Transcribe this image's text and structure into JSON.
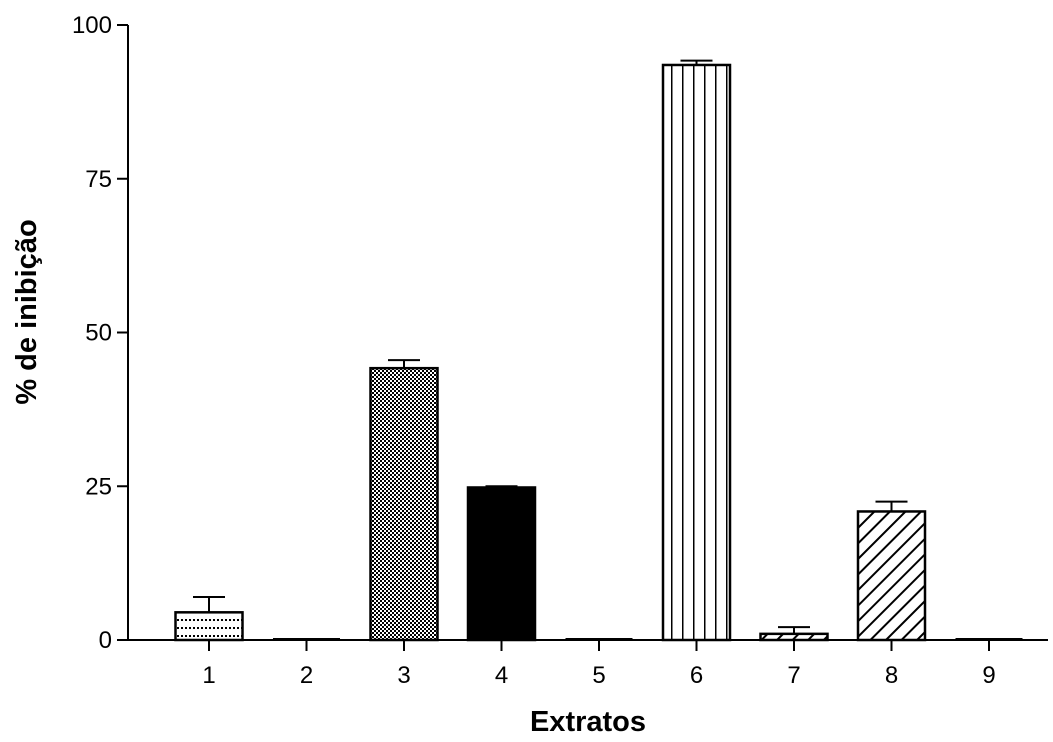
{
  "chart_data": {
    "type": "bar",
    "title": "",
    "xlabel": "Extratos",
    "ylabel": "% de inibição",
    "ylim": [
      0,
      100
    ],
    "yticks": [
      0,
      25,
      50,
      75,
      100
    ],
    "categories": [
      "1",
      "2",
      "3",
      "4",
      "5",
      "6",
      "7",
      "8",
      "9"
    ],
    "values": [
      4.5,
      0,
      44.2,
      24.8,
      0,
      93.5,
      1.0,
      20.9,
      0
    ],
    "errors": [
      2.5,
      0,
      1.3,
      0.2,
      0,
      0.7,
      1.1,
      1.6,
      0
    ],
    "patterns": [
      "dots",
      "none",
      "checker",
      "solid",
      "none",
      "vertical-lines",
      "diagonal-hatch",
      "diagonal-hatch",
      "none"
    ],
    "grid": false,
    "legend": "none",
    "colors": {
      "ink": "#000000",
      "fill": "#ffffff"
    }
  }
}
